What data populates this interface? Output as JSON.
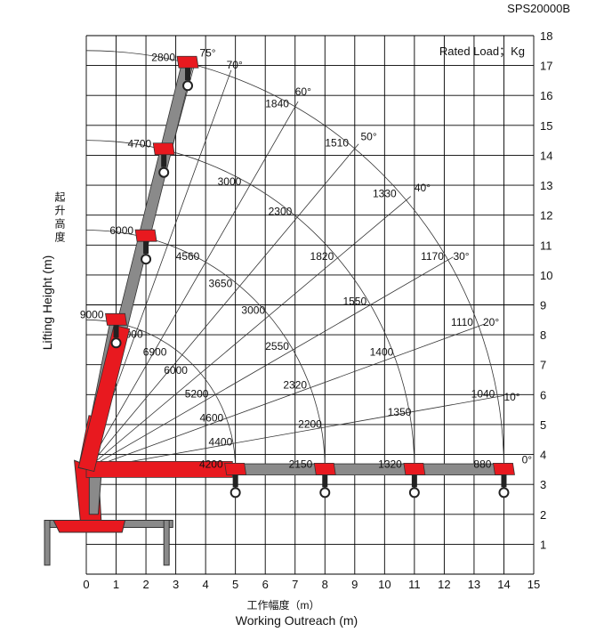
{
  "model": "SPS20000B",
  "chart_data": {
    "type": "scatter",
    "title": "SPS20000B",
    "legend_note": "Rated Load；Kg",
    "xlabel_cn": "工作幅度（m）",
    "xlabel": "Working Outreach (m)",
    "ylabel_cn": "起升高度",
    "ylabel": "Lifting Height (m)",
    "xlim": [
      0,
      15
    ],
    "ylim": [
      0,
      18
    ],
    "grid": true,
    "xticks": [
      "0",
      "1",
      "2",
      "3",
      "4",
      "5",
      "6",
      "7",
      "8",
      "9",
      "10",
      "11",
      "12",
      "13",
      "14",
      "15"
    ],
    "yticks": [
      "1",
      "2",
      "3",
      "4",
      "5",
      "6",
      "7",
      "8",
      "9",
      "10",
      "11",
      "12",
      "13",
      "14",
      "15",
      "16",
      "17",
      "18"
    ],
    "boom_positions": [
      {
        "x": 5.0,
        "y": 3.5,
        "load": "4200"
      },
      {
        "x": 8.0,
        "y": 3.5,
        "load": "2150"
      },
      {
        "x": 11.0,
        "y": 3.5,
        "load": "1320"
      },
      {
        "x": 14.0,
        "y": 3.5,
        "load": "880"
      },
      {
        "x": 1.0,
        "y": 8.5,
        "load": "9000"
      },
      {
        "x": 2.0,
        "y": 11.3,
        "load": "6000"
      },
      {
        "x": 2.6,
        "y": 14.2,
        "load": "4700"
      },
      {
        "x": 3.4,
        "y": 17.1,
        "load": "2800"
      }
    ],
    "angle_labels": [
      {
        "x": 3.8,
        "y": 17.3,
        "text": "75°"
      },
      {
        "x": 4.7,
        "y": 16.9,
        "text": "70°"
      },
      {
        "x": 7.0,
        "y": 16.0,
        "text": "60°"
      },
      {
        "x": 9.2,
        "y": 14.5,
        "text": "50°"
      },
      {
        "x": 11.0,
        "y": 12.8,
        "text": "40°"
      },
      {
        "x": 12.3,
        "y": 10.5,
        "text": "30°"
      },
      {
        "x": 13.3,
        "y": 8.3,
        "text": "20°"
      },
      {
        "x": 14.0,
        "y": 5.8,
        "text": "10°"
      },
      {
        "x": 14.6,
        "y": 3.7,
        "text": "0°"
      }
    ],
    "load_labels": [
      {
        "x": 6.4,
        "y": 15.6,
        "text": "1840"
      },
      {
        "x": 8.4,
        "y": 14.3,
        "text": "1510"
      },
      {
        "x": 10.0,
        "y": 12.6,
        "text": "1330"
      },
      {
        "x": 11.6,
        "y": 10.5,
        "text": "1170"
      },
      {
        "x": 12.6,
        "y": 8.3,
        "text": "1110"
      },
      {
        "x": 13.3,
        "y": 5.9,
        "text": "1040"
      },
      {
        "x": 4.8,
        "y": 13.0,
        "text": "3000"
      },
      {
        "x": 6.5,
        "y": 12.0,
        "text": "2300"
      },
      {
        "x": 7.9,
        "y": 10.5,
        "text": "1820"
      },
      {
        "x": 9.0,
        "y": 9.0,
        "text": "1550"
      },
      {
        "x": 9.9,
        "y": 7.3,
        "text": "1400"
      },
      {
        "x": 10.5,
        "y": 5.3,
        "text": "1350"
      },
      {
        "x": 3.4,
        "y": 10.5,
        "text": "4560"
      },
      {
        "x": 4.5,
        "y": 9.6,
        "text": "3650"
      },
      {
        "x": 5.6,
        "y": 8.7,
        "text": "3000"
      },
      {
        "x": 6.4,
        "y": 7.5,
        "text": "2550"
      },
      {
        "x": 7.0,
        "y": 6.2,
        "text": "2320"
      },
      {
        "x": 7.5,
        "y": 4.9,
        "text": "2200"
      },
      {
        "x": 1.5,
        "y": 7.9,
        "text": "8000"
      },
      {
        "x": 2.3,
        "y": 7.3,
        "text": "6900"
      },
      {
        "x": 3.0,
        "y": 6.7,
        "text": "6000"
      },
      {
        "x": 3.7,
        "y": 5.9,
        "text": "5200"
      },
      {
        "x": 4.2,
        "y": 5.1,
        "text": "4600"
      },
      {
        "x": 4.5,
        "y": 4.3,
        "text": "4400"
      }
    ]
  },
  "colors": {
    "boom_red": "#e8191f",
    "boom_grey": "#8a8a8a",
    "grid": "#000000",
    "dark": "#222222"
  }
}
